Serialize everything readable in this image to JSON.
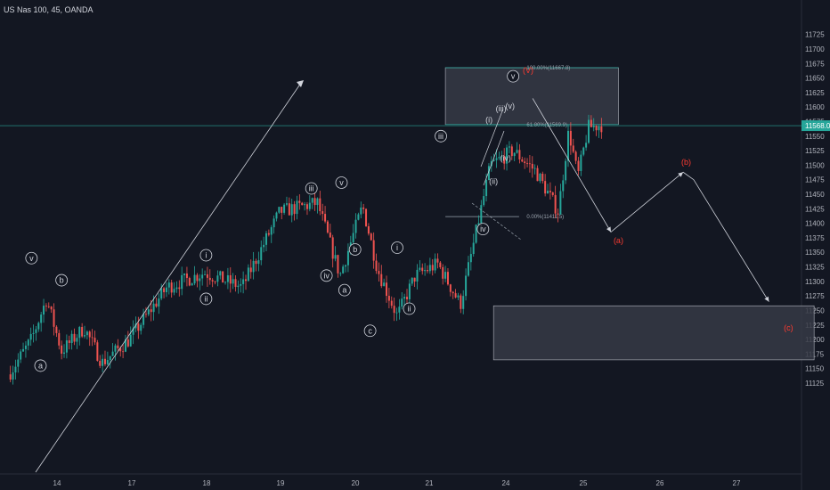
{
  "header": {
    "title": "US Nas 100, 45, OANDA"
  },
  "price_tag": "11568.0",
  "colors": {
    "bg": "#131722",
    "up": "#26a69a",
    "down": "#ef5350",
    "fib": "#26a69a",
    "label_red": "#ff3b30",
    "box": "#363a45"
  },
  "chart_data": {
    "type": "candlestick",
    "title": "US Nas 100, 45, OANDA",
    "ylim": [
      11100,
      11750
    ],
    "y_ticks": [
      11125,
      11150,
      11175,
      11200,
      11225,
      11250,
      11275,
      11300,
      11325,
      11350,
      11375,
      11400,
      11425,
      11450,
      11475,
      11500,
      11525,
      11550,
      11575,
      11600,
      11625,
      11650,
      11675,
      11700,
      11725
    ],
    "x_ticks": [
      "14",
      "17",
      "18",
      "19",
      "20",
      "21",
      "24",
      "25",
      "26",
      "27"
    ],
    "current_price": 11568.0,
    "fib_levels": [
      {
        "label": "100.00%(11667.8)",
        "price": 11667.8
      },
      {
        "label": "61.80%(11569.9)",
        "price": 11569.9
      },
      {
        "label": "0.00%(11411.5)",
        "price": 11411.5
      }
    ],
    "price_path": [
      [
        0,
        11140
      ],
      [
        1.5,
        11200
      ],
      [
        2.5,
        11270
      ],
      [
        3.5,
        11180
      ],
      [
        5,
        11220
      ],
      [
        6.2,
        11160
      ],
      [
        8,
        11200
      ],
      [
        10.5,
        11290
      ],
      [
        13,
        11315
      ],
      [
        15.5,
        11290
      ],
      [
        18,
        11420
      ],
      [
        20.5,
        11435
      ],
      [
        22,
        11310
      ],
      [
        23.5,
        11430
      ],
      [
        24.5,
        11320
      ],
      [
        25.8,
        11240
      ],
      [
        27,
        11310
      ],
      [
        28.5,
        11330
      ],
      [
        30,
        11260
      ],
      [
        32,
        11500
      ],
      [
        33.5,
        11525
      ],
      [
        35,
        11490
      ],
      [
        36.5,
        11420
      ],
      [
        37.2,
        11560
      ],
      [
        37.8,
        11480
      ],
      [
        38.5,
        11565
      ],
      [
        39.5,
        11570
      ]
    ],
    "waves": [
      {
        "label": "v",
        "circled": true,
        "x": 1.5,
        "y": 11340,
        "color": "#d1d4dc"
      },
      {
        "label": "a",
        "circled": true,
        "x": 2.1,
        "y": 11155,
        "color": "#d1d4dc"
      },
      {
        "label": "b",
        "circled": true,
        "x": 3.5,
        "y": 11302,
        "color": "#d1d4dc"
      },
      {
        "label": "i",
        "circled": true,
        "x": 13.1,
        "y": 11345,
        "color": "#d1d4dc"
      },
      {
        "label": "ii",
        "circled": true,
        "x": 13.1,
        "y": 11270,
        "color": "#d1d4dc"
      },
      {
        "label": "iii",
        "circled": true,
        "x": 20.1,
        "y": 11460,
        "color": "#d1d4dc"
      },
      {
        "label": "v",
        "circled": true,
        "x": 22.1,
        "y": 11470,
        "color": "#d1d4dc"
      },
      {
        "label": "iv",
        "circled": true,
        "x": 21.1,
        "y": 11310,
        "color": "#d1d4dc"
      },
      {
        "label": "b",
        "circled": true,
        "x": 23.0,
        "y": 11355,
        "color": "#d1d4dc"
      },
      {
        "label": "a",
        "circled": true,
        "x": 22.3,
        "y": 11285,
        "color": "#d1d4dc"
      },
      {
        "label": "c",
        "circled": true,
        "x": 24.0,
        "y": 11215,
        "color": "#d1d4dc"
      },
      {
        "label": "i",
        "circled": true,
        "x": 25.8,
        "y": 11358,
        "color": "#d1d4dc"
      },
      {
        "label": "ii",
        "circled": true,
        "x": 26.6,
        "y": 11253,
        "color": "#d1d4dc"
      },
      {
        "label": "iii",
        "circled": true,
        "x": 28.7,
        "y": 11550,
        "color": "#d1d4dc"
      },
      {
        "label": "iv",
        "circled": true,
        "x": 31.5,
        "y": 11390,
        "color": "#d1d4dc"
      },
      {
        "label": "v",
        "circled": true,
        "x": 33.5,
        "y": 11653,
        "color": "#d1d4dc"
      },
      {
        "label": "(i)",
        "circled": false,
        "x": 31.9,
        "y": 11578,
        "color": "#d1d4dc"
      },
      {
        "label": "(ii)",
        "circled": false,
        "x": 32.2,
        "y": 11472,
        "color": "#d1d4dc"
      },
      {
        "label": "(iii)",
        "circled": false,
        "x": 32.7,
        "y": 11597,
        "color": "#d1d4dc"
      },
      {
        "label": "(iv)",
        "circled": false,
        "x": 33.0,
        "y": 11512,
        "color": "#d1d4dc"
      },
      {
        "label": "(v)",
        "circled": false,
        "x": 33.3,
        "y": 11602,
        "color": "#d1d4dc"
      },
      {
        "label": "(V)",
        "circled": false,
        "x": 34.5,
        "y": 11663,
        "color": "#ff3b30"
      },
      {
        "label": "(a)",
        "circled": false,
        "x": 40.5,
        "y": 11370,
        "color": "#ff3b30"
      },
      {
        "label": "(b)",
        "circled": false,
        "x": 45.0,
        "y": 11505,
        "color": "#ff3b30"
      },
      {
        "label": "(c)",
        "circled": false,
        "x": 51.8,
        "y": 11220,
        "color": "#ff3b30"
      }
    ],
    "projection": [
      [
        34.8,
        11615
      ],
      [
        40.0,
        11385
      ],
      [
        44.8,
        11488
      ],
      [
        45.5,
        11475
      ],
      [
        50.5,
        11265
      ]
    ],
    "target_boxes": [
      {
        "x0": 29.0,
        "x1": 40.5,
        "y0": 11570,
        "y1": 11667.8
      },
      {
        "x0": 32.2,
        "x1": 53.5,
        "y0": 11165,
        "y1": 11258
      }
    ]
  }
}
